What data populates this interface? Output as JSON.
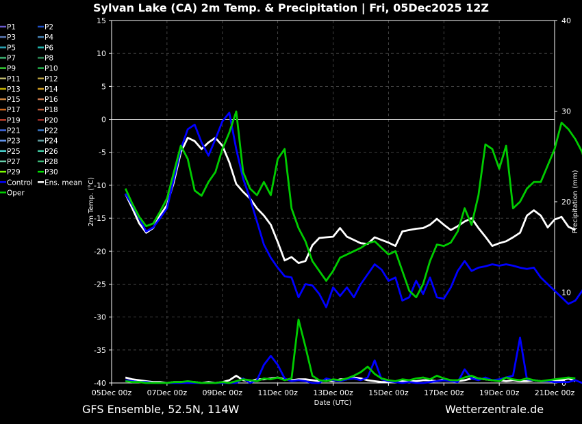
{
  "chart_data": {
    "type": "line",
    "title": "Sylvan Lake  (CA)  2m Temp. & Precipitation | Fri, 05Dec2025 12Z",
    "xlabel": "Date (UTC)",
    "ylabel_left": "2m Temp. (°C)",
    "ylabel_right": "Precipitation (mm)",
    "footer_left": "GFS Ensemble, 52.5N, 114W",
    "footer_right": "Wetterzentrale.de",
    "ylim_temp": [
      -40,
      15
    ],
    "ylim_precip": [
      0,
      40
    ],
    "yticks_temp": [
      "15",
      "10",
      "5",
      "0",
      "-5",
      "-10",
      "-15",
      "-20",
      "-25",
      "-30",
      "-35",
      "-40"
    ],
    "yticks_precip": [
      "40",
      "30",
      "20",
      "10",
      "0"
    ],
    "xticks": [
      "05Dec 00z",
      "07Dec 00z",
      "09Dec 00z",
      "11Dec 00z",
      "13Dec 00z",
      "15Dec 00z",
      "17Dec 00z",
      "19Dec 00z",
      "21Dec 00z"
    ],
    "grid": true,
    "legend_position": "left",
    "x_start": "05Dec 00z",
    "x_step_hours": 6,
    "series_start_index": 2,
    "legend": [
      {
        "name": "P1",
        "color": "#6a5acd"
      },
      {
        "name": "P2",
        "color": "#1e50c8"
      },
      {
        "name": "P3",
        "color": "#5a78b4"
      },
      {
        "name": "P4",
        "color": "#4682b4"
      },
      {
        "name": "P5",
        "color": "#2aa0b0"
      },
      {
        "name": "P6",
        "color": "#20b2aa"
      },
      {
        "name": "P7",
        "color": "#3cb371"
      },
      {
        "name": "P8",
        "color": "#2e8b57"
      },
      {
        "name": "P9",
        "color": "#32cd32"
      },
      {
        "name": "P10",
        "color": "#22b14c"
      },
      {
        "name": "P11",
        "color": "#bdb76b"
      },
      {
        "name": "P12",
        "color": "#b8a040"
      },
      {
        "name": "P13",
        "color": "#c8b400"
      },
      {
        "name": "P14",
        "color": "#d2a020"
      },
      {
        "name": "P15",
        "color": "#cd853f"
      },
      {
        "name": "P16",
        "color": "#c87850"
      },
      {
        "name": "P17",
        "color": "#d2691e"
      },
      {
        "name": "P18",
        "color": "#b85a3c"
      },
      {
        "name": "P19",
        "color": "#c0402a"
      },
      {
        "name": "P20",
        "color": "#a0302a"
      },
      {
        "name": "P21",
        "color": "#4169e1"
      },
      {
        "name": "P22",
        "color": "#3a78c8"
      },
      {
        "name": "P23",
        "color": "#6495ed"
      },
      {
        "name": "P24",
        "color": "#5f9ea0"
      },
      {
        "name": "P25",
        "color": "#48d1cc"
      },
      {
        "name": "P26",
        "color": "#40c8a0"
      },
      {
        "name": "P27",
        "color": "#66cdaa"
      },
      {
        "name": "P28",
        "color": "#3cb878"
      },
      {
        "name": "P29",
        "color": "#7cfc00"
      },
      {
        "name": "P30",
        "color": "#00e000"
      },
      {
        "name": "Control",
        "color": "#0000ff"
      },
      {
        "name": "Ens. mean",
        "color": "#ffffff"
      },
      {
        "name": "Oper",
        "color": "#00cc00"
      }
    ],
    "series": [
      {
        "name": "Ens. mean",
        "color": "#ffffff",
        "temp": [
          -11.3,
          -13.5,
          -15.8,
          -17.2,
          -16.5,
          -14.6,
          -13.0,
          -9.5,
          -5.0,
          -2.8,
          -3.3,
          -4.5,
          -3.5,
          -2.8,
          -4.0,
          -6.5,
          -9.8,
          -11.0,
          -12.0,
          -13.5,
          -14.6,
          -16.0,
          -18.6,
          -21.4,
          -20.9,
          -21.8,
          -21.5,
          -19.1,
          -18.0,
          -17.9,
          -17.8,
          -16.5,
          -17.8,
          -18.3,
          -18.8,
          -18.9,
          -17.9,
          -18.3,
          -18.7,
          -19.2,
          -17.0,
          -16.8,
          -16.6,
          -16.5,
          -16.0,
          -15.1,
          -16.0,
          -16.8,
          -16.2,
          -15.5,
          -15.0,
          -16.5,
          -17.8,
          -19.2,
          -18.8,
          -18.5,
          -17.9,
          -17.2,
          -14.6,
          -13.8,
          -14.6,
          -16.4,
          -15.2,
          -14.8,
          -16.3,
          -16.8
        ],
        "precip": [
          0.6,
          0.4,
          0.3,
          0.2,
          0.1,
          0.1,
          0.0,
          0.1,
          0.1,
          0.1,
          0.1,
          0.0,
          0.1,
          0.0,
          0.1,
          0.3,
          0.8,
          0.3,
          0.2,
          0.4,
          0.4,
          0.5,
          0.6,
          0.4,
          0.3,
          0.4,
          0.4,
          0.3,
          0.2,
          0.3,
          0.2,
          0.4,
          0.4,
          0.6,
          0.5,
          0.3,
          0.2,
          0.1,
          0.1,
          0.1,
          0.2,
          0.2,
          0.2,
          0.3,
          0.3,
          0.2,
          0.4,
          0.3,
          0.2,
          0.3,
          0.5,
          0.5,
          0.4,
          0.3,
          0.3,
          0.2,
          0.3,
          0.2,
          0.2,
          0.3,
          0.2,
          0.2,
          0.3,
          0.3,
          0.5,
          0.2
        ]
      },
      {
        "name": "Control",
        "color": "#0000ff",
        "temp": [
          -11.3,
          -13.0,
          -15.0,
          -17.0,
          -16.4,
          -15.0,
          -13.5,
          -9.0,
          -4.5,
          -1.5,
          -0.8,
          -3.5,
          -5.5,
          -3.0,
          -0.3,
          1.0,
          -4.5,
          -9.0,
          -12.0,
          -15.5,
          -19.0,
          -21.0,
          -22.5,
          -23.8,
          -24.0,
          -27.0,
          -25.0,
          -25.2,
          -26.5,
          -28.5,
          -25.5,
          -26.8,
          -25.5,
          -27.0,
          -25.0,
          -23.5,
          -22.0,
          -22.8,
          -24.5,
          -24.0,
          -27.5,
          -27.0,
          -24.5,
          -26.5,
          -24.0,
          -27.0,
          -27.2,
          -25.5,
          -23.0,
          -21.5,
          -23.0,
          -22.5,
          -22.3,
          -22.0,
          -22.2,
          -22.0,
          -22.2,
          -22.5,
          -22.7,
          -22.5,
          -24.0,
          -25.0,
          -26.0,
          -27.0,
          -28.0,
          -27.5,
          -26.0,
          -24.0,
          -24.5,
          -24.3,
          -24.0,
          -23.8
        ],
        "precip": [
          0.3,
          0.2,
          0.1,
          0.1,
          0.0,
          0.0,
          0.0,
          0.0,
          0.0,
          0.0,
          0.0,
          0.0,
          0.0,
          0.0,
          0.0,
          0.0,
          0.0,
          0.5,
          0.0,
          0.3,
          2.0,
          3.0,
          2.0,
          0.5,
          0.2,
          0.3,
          0.2,
          0.0,
          0.0,
          0.5,
          0.3,
          0.2,
          0.4,
          0.5,
          0.3,
          0.6,
          2.5,
          0.4,
          0.2,
          0.1,
          0.0,
          0.1,
          0.0,
          0.0,
          0.1,
          0.2,
          0.3,
          0.2,
          0.1,
          1.5,
          0.5,
          0.3,
          0.6,
          0.3,
          0.4,
          0.6,
          0.8,
          5.0,
          0.4,
          0.3,
          0.2,
          0.2,
          0.1,
          0.1,
          0.1,
          0.3,
          0.0,
          0.2,
          0.5,
          0.6,
          1.0,
          2.0
        ]
      },
      {
        "name": "Oper",
        "color": "#00cc00",
        "temp": [
          -10.5,
          -12.8,
          -14.8,
          -16.2,
          -15.8,
          -14.0,
          -12.0,
          -8.0,
          -4.0,
          -6.0,
          -10.8,
          -11.6,
          -9.5,
          -8.0,
          -4.5,
          -2.0,
          1.2,
          -8.0,
          -10.5,
          -11.5,
          -9.5,
          -11.5,
          -6.0,
          -4.5,
          -13.5,
          -16.5,
          -18.5,
          -21.5,
          -23.0,
          -24.5,
          -23.0,
          -21.0,
          -20.5,
          -20.0,
          -19.5,
          -18.8,
          -18.5,
          -19.5,
          -20.5,
          -20.0,
          -23.0,
          -26.0,
          -27.0,
          -25.0,
          -21.5,
          -19.0,
          -19.2,
          -18.7,
          -17.0,
          -13.5,
          -16.0,
          -11.5,
          -3.8,
          -4.5,
          -7.5,
          -4.0,
          -13.5,
          -12.5,
          -10.5,
          -9.5,
          -9.5,
          -7.0,
          -4.5,
          -0.5,
          -1.5,
          -3.0,
          -5.0,
          -9.5,
          -1.0,
          -1.5,
          -5.0,
          -9.0
        ],
        "precip": [
          0.2,
          0.1,
          0.1,
          0.0,
          0.0,
          0.0,
          0.0,
          0.1,
          0.1,
          0.2,
          0.1,
          0.0,
          0.0,
          0.0,
          0.1,
          0.0,
          0.2,
          0.4,
          0.3,
          0.2,
          0.5,
          0.4,
          0.6,
          0.3,
          0.5,
          7.0,
          4.0,
          0.8,
          0.3,
          0.2,
          0.4,
          0.3,
          0.5,
          0.8,
          1.2,
          1.8,
          1.0,
          0.5,
          0.3,
          0.2,
          0.4,
          0.3,
          0.5,
          0.6,
          0.4,
          0.8,
          0.5,
          0.3,
          0.3,
          0.6,
          0.8,
          0.5,
          0.4,
          0.3,
          0.2,
          0.6,
          0.4,
          0.3,
          0.5,
          0.3,
          0.2,
          0.3,
          0.4,
          0.5,
          0.6,
          0.5
        ]
      }
    ]
  }
}
